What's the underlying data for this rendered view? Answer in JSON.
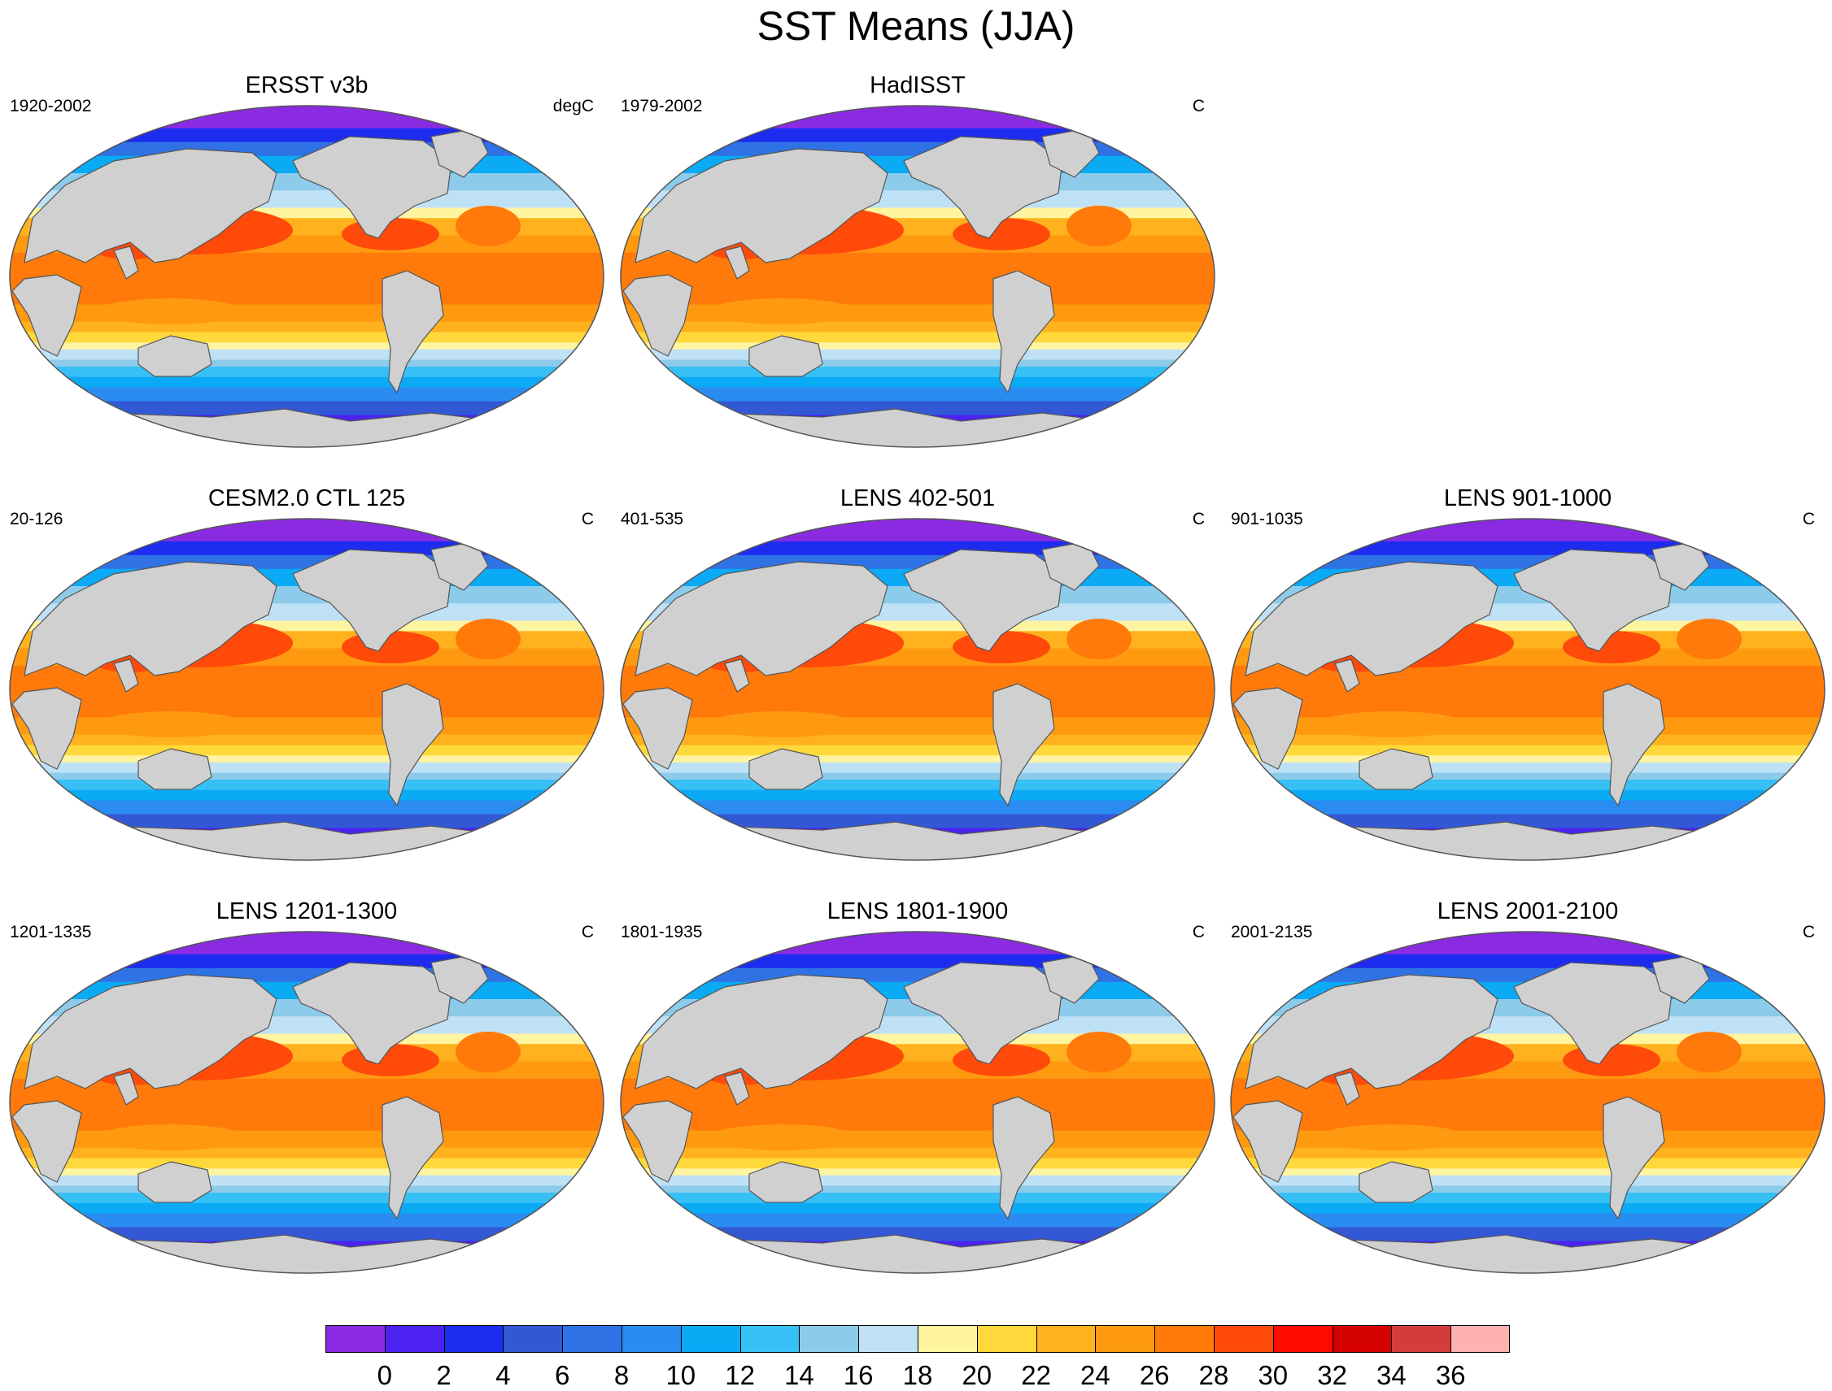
{
  "title": "SST Means (JJA)",
  "panels": [
    {
      "title": "ERSST v3b",
      "left_label": "1920-2002",
      "right_label": "degC"
    },
    {
      "title": "HadISST",
      "left_label": "1979-2002",
      "right_label": "C"
    },
    {
      "title": "CESM2.0 CTL 125",
      "left_label": "20-126",
      "right_label": "C"
    },
    {
      "title": "LENS 402-501",
      "left_label": "401-535",
      "right_label": "C"
    },
    {
      "title": "LENS 901-1000",
      "left_label": "901-1035",
      "right_label": "C"
    },
    {
      "title": "LENS 1201-1300",
      "left_label": "1201-1335",
      "right_label": "C"
    },
    {
      "title": "LENS 1801-1900",
      "left_label": "1801-1935",
      "right_label": "C"
    },
    {
      "title": "LENS 2001-2100",
      "left_label": "2001-2135",
      "right_label": "C"
    }
  ],
  "colorbar": {
    "labels": [
      "0",
      "2",
      "4",
      "6",
      "8",
      "10",
      "12",
      "14",
      "16",
      "18",
      "20",
      "22",
      "24",
      "26",
      "28",
      "30",
      "32",
      "34",
      "36"
    ],
    "colors": [
      "#8a2be2",
      "#4b22f0",
      "#1e2cf0",
      "#3358d6",
      "#2f72e6",
      "#2a8cf0",
      "#0aaaf5",
      "#37c0f5",
      "#8ccbea",
      "#bfe1f5",
      "#fff4a0",
      "#ffd93c",
      "#ffb21e",
      "#ff9a10",
      "#ff7a0a",
      "#ff4a0a",
      "#ff0a00",
      "#d40000",
      "#d23c3c",
      "#ffb0b0"
    ]
  },
  "map_colors": {
    "land": "#d0d0d0",
    "coast": "#555555"
  }
}
